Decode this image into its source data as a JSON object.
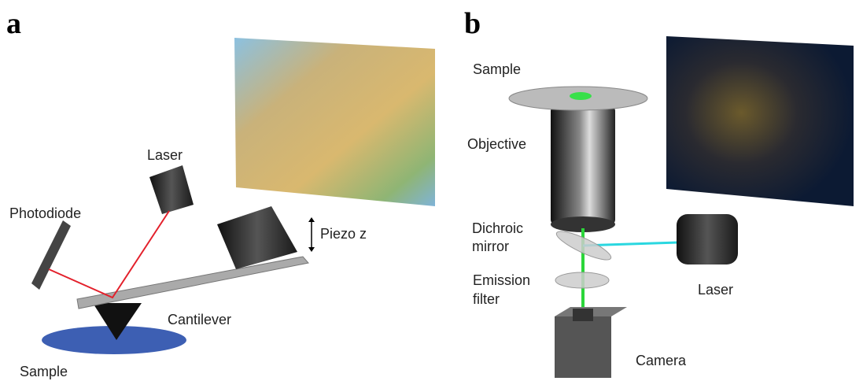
{
  "panels": [
    {
      "letter": "a",
      "labels": {
        "laser": [
          "Laser"
        ],
        "photodiode": [
          "Photodiode"
        ],
        "piezo": [
          "Piezo z"
        ],
        "cantilever": [
          "Cantilever"
        ],
        "sample": [
          "Sample"
        ]
      }
    },
    {
      "letter": "b",
      "labels": {
        "sample": [
          "Sample"
        ],
        "objective": [
          "Objective"
        ],
        "mirror": [
          "Dichroic",
          "mirror"
        ],
        "filter": [
          "Emission",
          "filter"
        ],
        "laser": [
          "Laser"
        ],
        "camera": [
          "Camera"
        ]
      }
    }
  ]
}
